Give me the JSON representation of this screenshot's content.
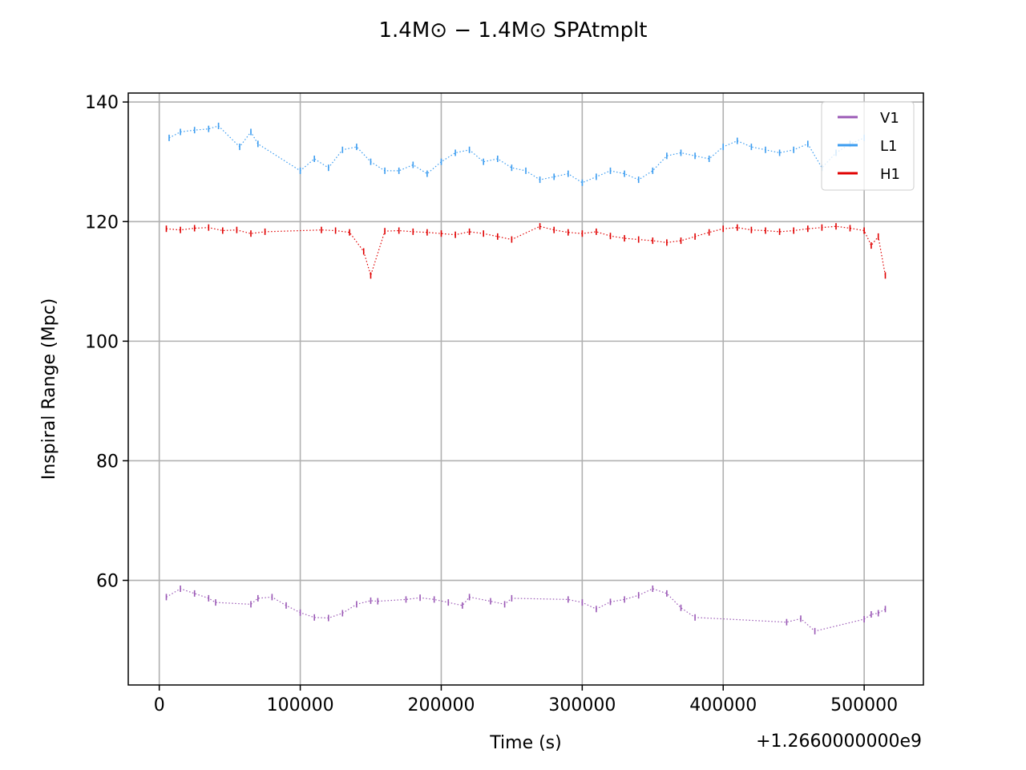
{
  "chart_data": {
    "type": "scatter",
    "title": "1.4M⊙ − 1.4M⊙ SPAtmplt",
    "xlabel": "Time (s)",
    "ylabel": "Inspiral Range (Mpc)",
    "x_offset_label": "+1.2660000000e9",
    "xlim": [
      -22000,
      542000
    ],
    "ylim": [
      42.5,
      141.5
    ],
    "x_ticks": [
      0,
      100000,
      200000,
      300000,
      400000,
      500000
    ],
    "x_tick_labels": [
      "0",
      "100000",
      "200000",
      "300000",
      "400000",
      "500000"
    ],
    "y_ticks": [
      60,
      80,
      100,
      120,
      140
    ],
    "y_tick_labels": [
      "60",
      "80",
      "100",
      "120",
      "140"
    ],
    "grid": true,
    "legend_position": "top-right",
    "series": [
      {
        "name": "V1",
        "color": "#9b59b6",
        "x": [
          5000,
          15000,
          25000,
          35000,
          40000,
          65000,
          70000,
          80000,
          90000,
          100000,
          110000,
          120000,
          130000,
          140000,
          150000,
          155000,
          175000,
          185000,
          195000,
          205000,
          215000,
          220000,
          235000,
          245000,
          250000,
          290000,
          300000,
          310000,
          320000,
          330000,
          340000,
          350000,
          360000,
          370000,
          380000,
          445000,
          455000,
          465000,
          500000,
          505000,
          510000,
          515000
        ],
        "y": [
          57.2,
          58.6,
          57.8,
          57.0,
          56.3,
          56.0,
          57.0,
          57.2,
          55.8,
          54.6,
          53.8,
          53.7,
          54.5,
          56.0,
          56.6,
          56.5,
          56.8,
          57.1,
          56.8,
          56.3,
          55.8,
          57.2,
          56.5,
          56.0,
          57.0,
          56.8,
          56.3,
          55.2,
          56.4,
          56.8,
          57.5,
          58.6,
          57.8,
          55.4,
          53.8,
          53.0,
          53.6,
          51.5,
          53.5,
          54.3,
          54.5,
          55.2
        ]
      },
      {
        "name": "L1",
        "color": "#3b9cf0",
        "x": [
          7000,
          15000,
          25000,
          35000,
          42000,
          57000,
          65000,
          70000,
          100000,
          110000,
          120000,
          130000,
          140000,
          150000,
          160000,
          170000,
          180000,
          190000,
          200000,
          210000,
          220000,
          230000,
          240000,
          250000,
          260000,
          270000,
          280000,
          290000,
          300000,
          310000,
          320000,
          330000,
          340000,
          350000,
          360000,
          370000,
          380000,
          390000,
          400000,
          410000,
          420000,
          430000,
          440000,
          450000,
          460000,
          470000,
          480000,
          490000,
          500000
        ],
        "y": [
          134.0,
          135.0,
          135.3,
          135.5,
          136.0,
          132.5,
          135.0,
          133.0,
          128.5,
          130.5,
          129.0,
          132.0,
          132.5,
          130.0,
          128.5,
          128.5,
          129.5,
          128.0,
          130.0,
          131.5,
          132.0,
          130.0,
          130.5,
          129.0,
          128.5,
          127.0,
          127.5,
          128.0,
          126.5,
          127.5,
          128.5,
          128.0,
          127.0,
          128.5,
          131.0,
          131.5,
          131.0,
          130.5,
          132.5,
          133.5,
          132.5,
          132.0,
          131.5,
          132.0,
          133.0,
          129.0,
          131.5,
          133.0,
          134.0
        ]
      },
      {
        "name": "H1",
        "color": "#e00000",
        "x": [
          5000,
          15000,
          25000,
          35000,
          45000,
          55000,
          65000,
          75000,
          115000,
          125000,
          135000,
          145000,
          150000,
          160000,
          170000,
          180000,
          190000,
          200000,
          210000,
          220000,
          230000,
          240000,
          250000,
          270000,
          280000,
          290000,
          300000,
          310000,
          320000,
          330000,
          340000,
          350000,
          360000,
          370000,
          380000,
          390000,
          400000,
          410000,
          420000,
          430000,
          440000,
          450000,
          460000,
          470000,
          480000,
          490000,
          500000,
          505000,
          510000,
          515000
        ],
        "y": [
          118.8,
          118.6,
          118.9,
          119.0,
          118.5,
          118.6,
          118.0,
          118.3,
          118.6,
          118.5,
          118.2,
          115.0,
          111.0,
          118.4,
          118.5,
          118.3,
          118.2,
          118.0,
          117.8,
          118.3,
          118.0,
          117.5,
          117.0,
          119.2,
          118.6,
          118.2,
          118.0,
          118.3,
          117.6,
          117.2,
          117.0,
          116.8,
          116.5,
          116.8,
          117.5,
          118.2,
          118.8,
          119.0,
          118.6,
          118.5,
          118.3,
          118.5,
          118.8,
          119.0,
          119.2,
          118.9,
          118.5,
          116.0,
          117.5,
          111.0
        ]
      }
    ]
  }
}
